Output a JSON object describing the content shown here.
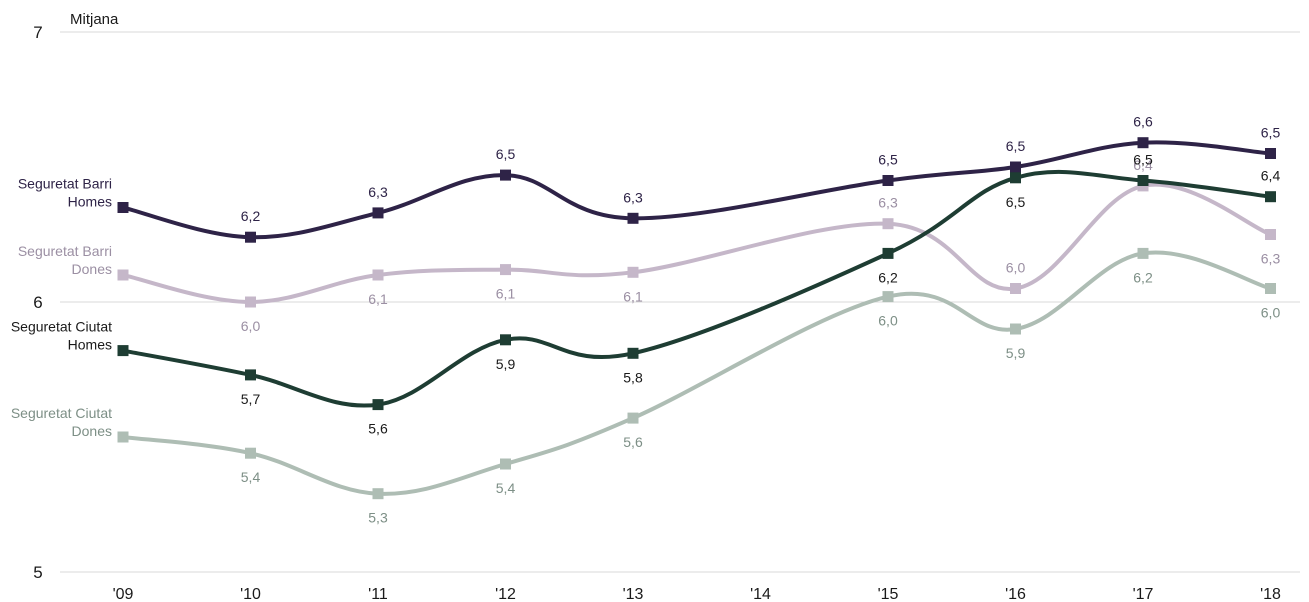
{
  "chart_data": {
    "type": "line",
    "y_axis_title": "Mitjana",
    "ylim": [
      5,
      7
    ],
    "y_ticks": [
      "5",
      "6",
      "7"
    ],
    "categories": [
      "'09",
      "'10",
      "'11",
      "'12",
      "'13",
      "'14",
      "'15",
      "'16",
      "'17",
      "'18"
    ],
    "grid": true,
    "series": [
      {
        "name_lines": [
          "Seguretat Barri",
          "Homes"
        ],
        "color": "#2e2347",
        "label_color": "#2e2347",
        "values": [
          6.35,
          6.24,
          6.33,
          6.47,
          6.31,
          null,
          6.45,
          6.5,
          6.59,
          6.55
        ],
        "labels": [
          null,
          "6,2",
          "6,3",
          "6,5",
          "6,3",
          null,
          "6,5",
          "6,5",
          "6,6",
          "6,5"
        ],
        "label_pos": [
          null,
          "above",
          "above",
          "above",
          "above",
          null,
          "above",
          "above",
          "above",
          "above"
        ]
      },
      {
        "name_lines": [
          "Seguretat Barri",
          "Dones"
        ],
        "color": "#c5b7c9",
        "label_color": "#9b8fa3",
        "values": [
          6.1,
          6.0,
          6.1,
          6.12,
          6.11,
          null,
          6.29,
          6.05,
          6.43,
          6.25
        ],
        "labels": [
          null,
          "6,0",
          "6,1",
          "6,1",
          "6,1",
          null,
          "6,3",
          "6,0",
          "6,4",
          "6,3"
        ],
        "label_pos": [
          null,
          "below",
          "below",
          "below",
          "below",
          null,
          "above",
          "above",
          "above",
          "below"
        ]
      },
      {
        "name_lines": [
          "Seguretat Ciutat",
          "Homes"
        ],
        "color": "#1e3d33",
        "label_color": "#1a1a1a",
        "values": [
          5.82,
          5.73,
          5.62,
          5.86,
          5.81,
          null,
          6.18,
          6.46,
          6.45,
          6.39
        ],
        "labels": [
          null,
          "5,7",
          "5,6",
          "5,9",
          "5,8",
          null,
          "6,2",
          "6,5",
          "6,5",
          "6,4"
        ],
        "label_pos": [
          null,
          "below",
          "below",
          "below",
          "below",
          null,
          "below",
          "below",
          "above",
          "above"
        ]
      },
      {
        "name_lines": [
          "Seguretat Ciutat",
          "Dones"
        ],
        "color": "#aebdb4",
        "label_color": "#7d8f86",
        "values": [
          5.5,
          5.44,
          5.29,
          5.4,
          5.57,
          null,
          6.02,
          5.9,
          6.18,
          6.05
        ],
        "labels": [
          null,
          "5,4",
          "5,3",
          "5,4",
          "5,6",
          null,
          "6,0",
          "5,9",
          "6,2",
          "6,0"
        ],
        "label_pos": [
          null,
          "below",
          "below",
          "below",
          "below",
          null,
          "below",
          "below",
          "below",
          "below"
        ]
      }
    ]
  }
}
